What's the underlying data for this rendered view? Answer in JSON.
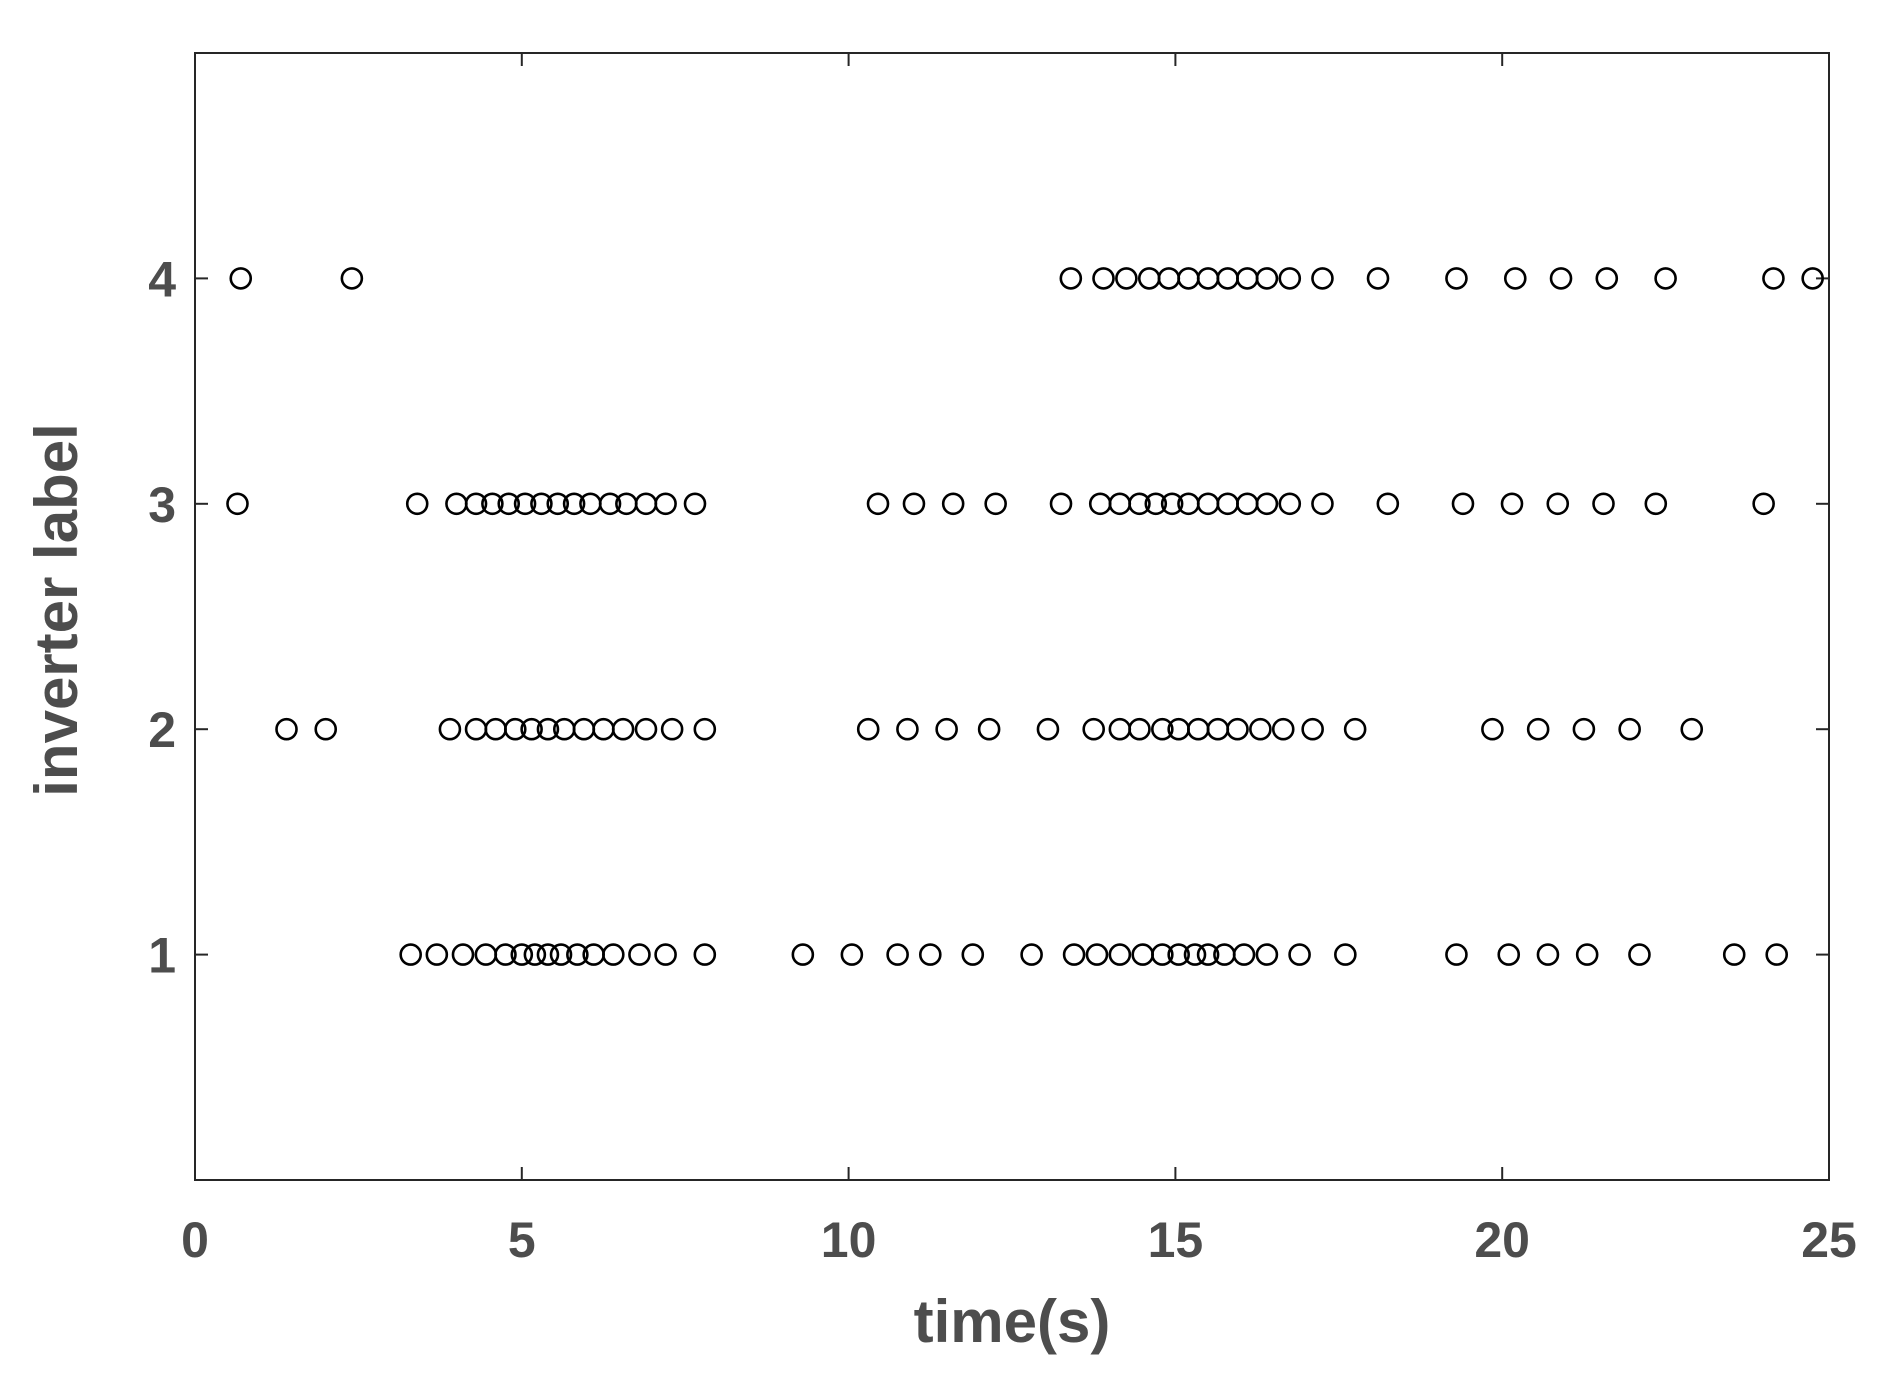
{
  "chart_data": {
    "type": "scatter",
    "xlabel": "time(s)",
    "ylabel": "inverter label",
    "xlim": [
      0,
      25
    ],
    "ylim": [
      0,
      5
    ],
    "xticks": [
      0,
      5,
      10,
      15,
      20,
      25
    ],
    "xtick_labels": [
      "0",
      "5",
      "10",
      "15",
      "20",
      "25"
    ],
    "yticks": [
      1,
      2,
      3,
      4
    ],
    "ytick_labels": [
      "1",
      "2",
      "3",
      "4"
    ],
    "grid": false,
    "marker": "open-circle",
    "marker_color": "#000000",
    "series": [
      {
        "y": 1,
        "x": [
          3.3,
          3.7,
          4.1,
          4.45,
          4.75,
          5.0,
          5.2,
          5.4,
          5.6,
          5.85,
          6.1,
          6.4,
          6.8,
          7.2,
          7.8,
          9.3,
          10.05,
          10.75,
          11.25,
          11.9,
          12.8,
          13.45,
          13.8,
          14.15,
          14.5,
          14.8,
          15.05,
          15.3,
          15.5,
          15.75,
          16.05,
          16.4,
          16.9,
          17.6,
          19.3,
          20.1,
          20.7,
          21.3,
          22.1,
          23.55,
          24.2
        ]
      },
      {
        "y": 2,
        "x": [
          1.4,
          2.0,
          3.9,
          4.3,
          4.6,
          4.9,
          5.15,
          5.4,
          5.65,
          5.95,
          6.25,
          6.55,
          6.9,
          7.3,
          7.8,
          10.3,
          10.9,
          11.5,
          12.15,
          13.05,
          13.75,
          14.15,
          14.45,
          14.8,
          15.05,
          15.35,
          15.65,
          15.95,
          16.3,
          16.65,
          17.1,
          17.75,
          19.85,
          20.55,
          21.25,
          21.95,
          22.9
        ]
      },
      {
        "y": 3,
        "x": [
          0.65,
          3.4,
          4.0,
          4.3,
          4.55,
          4.8,
          5.05,
          5.3,
          5.55,
          5.8,
          6.05,
          6.35,
          6.6,
          6.9,
          7.2,
          7.65,
          10.45,
          11.0,
          11.6,
          12.25,
          13.25,
          13.85,
          14.15,
          14.45,
          14.7,
          14.95,
          15.2,
          15.5,
          15.8,
          16.1,
          16.4,
          16.75,
          17.25,
          18.25,
          19.4,
          20.15,
          20.85,
          21.55,
          22.35,
          24.0
        ]
      },
      {
        "y": 4,
        "x": [
          0.7,
          2.4,
          13.4,
          13.9,
          14.25,
          14.6,
          14.9,
          15.2,
          15.5,
          15.8,
          16.1,
          16.4,
          16.75,
          17.25,
          18.1,
          19.3,
          20.2,
          20.9,
          21.6,
          22.5,
          24.15,
          24.75
        ]
      }
    ]
  }
}
